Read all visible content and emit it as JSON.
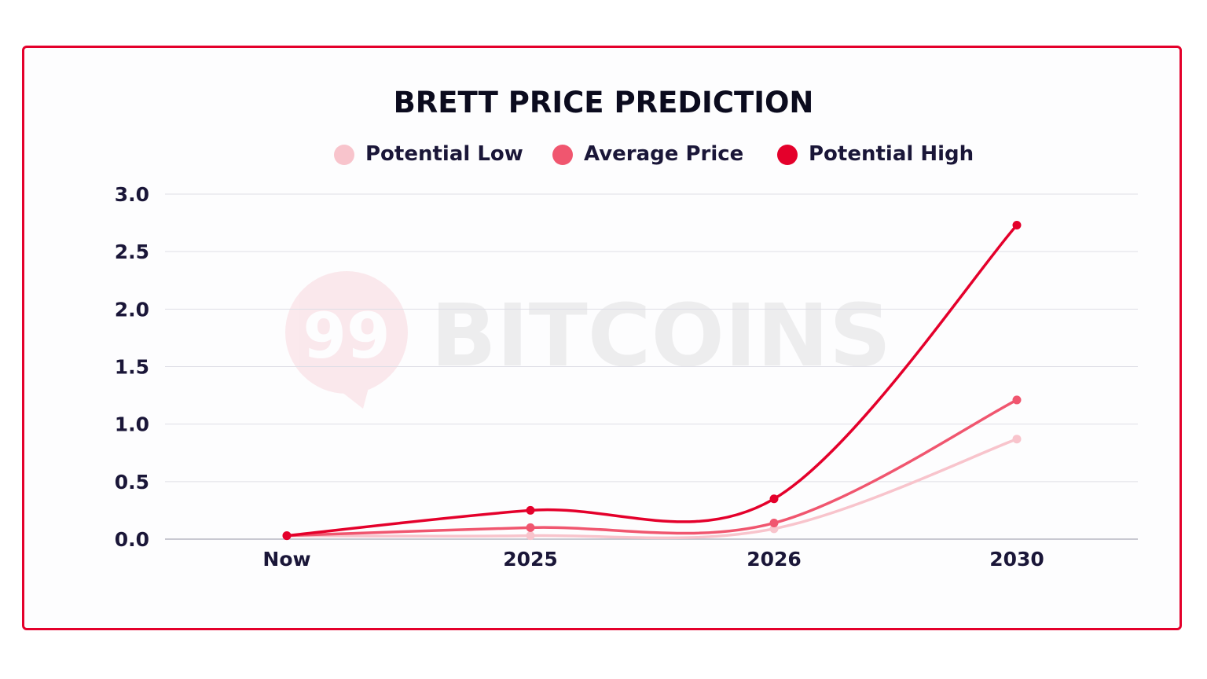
{
  "watermark": "99 BITCOINS",
  "chart_data": {
    "type": "line",
    "title": "BRETT PRICE PREDICTION",
    "categories": [
      "Now",
      "2025",
      "2026",
      "2030"
    ],
    "series": [
      {
        "name": "Potential Low",
        "color": "#f8c4cc",
        "values": [
          0.03,
          0.03,
          0.09,
          0.87
        ]
      },
      {
        "name": "Average Price",
        "color": "#f0566f",
        "values": [
          0.03,
          0.1,
          0.14,
          1.21
        ]
      },
      {
        "name": "Potential High",
        "color": "#e4002b",
        "values": [
          0.03,
          0.25,
          0.35,
          2.73
        ]
      }
    ],
    "yticks": [
      "0.0",
      "0.5",
      "1.0",
      "1.5",
      "2.0",
      "2.5",
      "3.0"
    ],
    "ylim": [
      0,
      3.0
    ],
    "grid": true,
    "legend": "top"
  }
}
